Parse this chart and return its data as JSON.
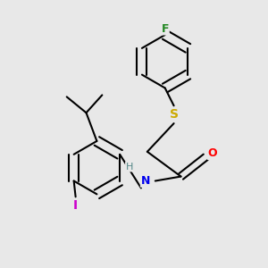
{
  "bg_color": "#e8e8e8",
  "bond_color": "#000000",
  "bond_width": 1.5,
  "atom_labels": {
    "F": {
      "color": "#228822"
    },
    "S": {
      "color": "#ccaa00"
    },
    "O": {
      "color": "#ff0000"
    },
    "N": {
      "color": "#0000ee"
    },
    "H": {
      "color": "#558888"
    },
    "I": {
      "color": "#cc00cc"
    }
  },
  "figsize": [
    3.0,
    3.0
  ],
  "dpi": 100,
  "xlim": [
    0.0,
    3.0
  ],
  "ylim": [
    0.0,
    3.0
  ]
}
